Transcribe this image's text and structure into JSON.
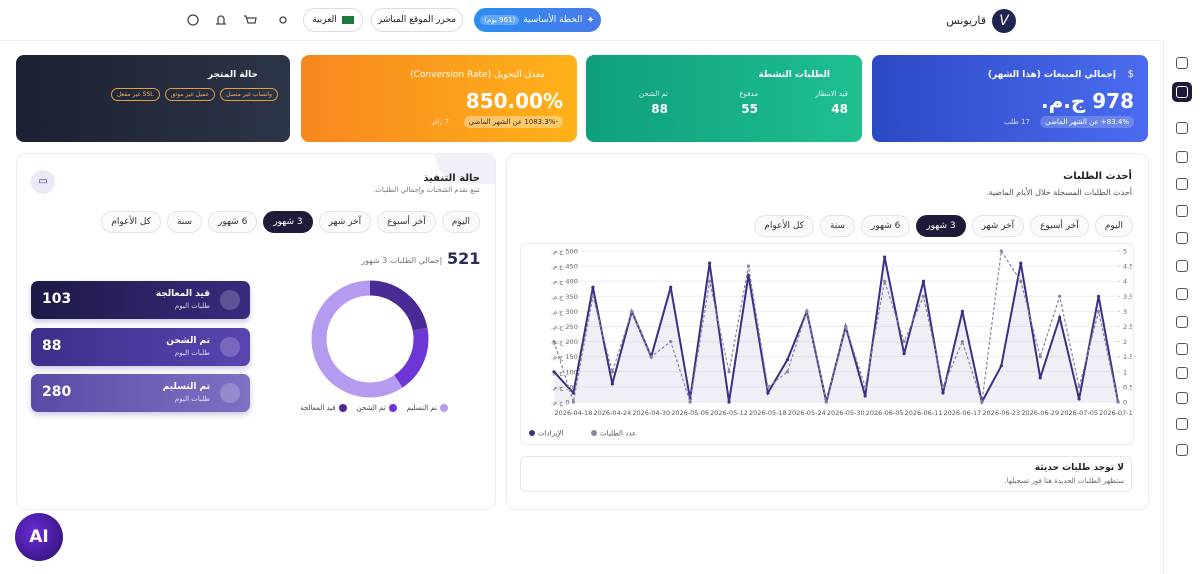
{
  "header": {
    "brand": "قاريونس",
    "brand_initial": "V",
    "plan_button": "الخطة الأساسية",
    "plan_days": "(961 يوم)",
    "editor_button": "محرر الموقع المباشر",
    "language": "العربية"
  },
  "cards": {
    "sales": {
      "title": "إجمالي المبيعات (هذا الشهر)",
      "value": "978 ج.م.",
      "change": "83.4%+ عن الشهر الماضي",
      "orders": "17 طلب"
    },
    "active": {
      "title": "الطلبات النشطة",
      "items": [
        {
          "label": "قيد الانتظار",
          "value": 48
        },
        {
          "label": "مدفوع",
          "value": 55
        },
        {
          "label": "تم الشحن",
          "value": 88
        }
      ]
    },
    "conversion": {
      "title": "معدل التحويل (Conversion Rate)",
      "value": "850.00%",
      "change": "-1083.3% عن الشهر الماضي",
      "visitors": "7 زائر"
    },
    "store": {
      "title": "حالة المتجر",
      "badges": [
        "واتساب غير متصل",
        "عميل غير موثق",
        "SSL غير مفعل"
      ]
    }
  },
  "fulfillment": {
    "title": "حالة التنفيذ",
    "subtitle": "تتبع تقدم الشحنات وإجمالي الطلبات.",
    "tabs": [
      "اليوم",
      "آخر أسبوع",
      "آخر شهر",
      "3 شهور",
      "6 شهور",
      "سنة",
      "كل الأعوام"
    ],
    "active_tab": "3 شهور",
    "total": 521,
    "total_label": "إجمالي الطلبات 3 شهور",
    "statuses": [
      {
        "name": "قيد المعالجة",
        "note": "طلبات اليوم",
        "count": 103,
        "color": "#4a2a95"
      },
      {
        "name": "تم الشحن",
        "note": "طلبات اليوم",
        "count": 88,
        "color": "#6f36d6"
      },
      {
        "name": "تم التسليم",
        "note": "طلبات اليوم",
        "count": 280,
        "color": "#b59bf0"
      }
    ]
  },
  "recent": {
    "title": "أحدث الطلبات",
    "subtitle": "أحدث الطلبات المسجلة خلال الأيام الماضية.",
    "tabs": [
      "اليوم",
      "آخر أسبوع",
      "آخر شهر",
      "3 شهور",
      "6 شهور",
      "سنة",
      "كل الأعوام"
    ],
    "active_tab": "3 شهور",
    "chart": {
      "type": "line",
      "categories": [
        null,
        "2026-04-18",
        null,
        "2026-04-24",
        null,
        "2026-04-30",
        null,
        "2026-05-06",
        null,
        "2026-05-12",
        null,
        "2026-05-18",
        null,
        "2026-05-24",
        null,
        "2026-05-30",
        null,
        "2026-06-05",
        null,
        "2026-06-11",
        null,
        "2026-06-17",
        null,
        "2026-06-23",
        null,
        "2026-06-29",
        null,
        "2026-07-05",
        null,
        "2026-07-11"
      ],
      "series": [
        {
          "name": "الإيرادات",
          "color": "#3f2d86",
          "values": [
            100,
            30,
            380,
            60,
            300,
            150,
            380,
            10,
            460,
            0,
            420,
            30,
            140,
            300,
            0,
            250,
            20,
            480,
            160,
            400,
            30,
            300,
            0,
            120,
            460,
            80,
            280,
            10,
            350,
            0
          ]
        },
        {
          "name": "عدد الطلبات",
          "color": "#8a85a0",
          "axis": "y2",
          "values": [
            2,
            0,
            3.5,
            1,
            3,
            1.5,
            2,
            0,
            4,
            1,
            4.5,
            0.5,
            1,
            3,
            0,
            2.5,
            0.5,
            4,
            2,
            3.5,
            0.5,
            2,
            0,
            5,
            4,
            1.5,
            3.5,
            0.5,
            3,
            0
          ]
        }
      ],
      "ylim": [
        0,
        500
      ],
      "yticks": [
        {
          "value": 0,
          "label": "0 ج.م."
        },
        {
          "value": 50,
          "label": "50 ج.م."
        },
        {
          "value": 100,
          "label": "100 ج.م."
        },
        {
          "value": 150,
          "label": "150 ج.م."
        },
        {
          "value": 200,
          "label": "200 ج.م."
        },
        {
          "value": 250,
          "label": "250 ج.م."
        },
        {
          "value": 300,
          "label": "300 ج.م."
        },
        {
          "value": 350,
          "label": "350 ج.م."
        },
        {
          "value": 400,
          "label": "400 ج.م."
        },
        {
          "value": 450,
          "label": "450 ج.م."
        },
        {
          "value": 500,
          "label": "500 ج.م."
        }
      ],
      "y2lim": [
        0,
        5
      ],
      "y2ticks": [
        0,
        0.5,
        1,
        1.5,
        2,
        2.5,
        3,
        3.5,
        4,
        4.5,
        5
      ],
      "grid": true
    },
    "empty_title": "لا توجد طلبات حديثة",
    "empty_text": "ستظهر الطلبات الجديدة هنا فور تسجيلها."
  },
  "ai_button": "AI"
}
